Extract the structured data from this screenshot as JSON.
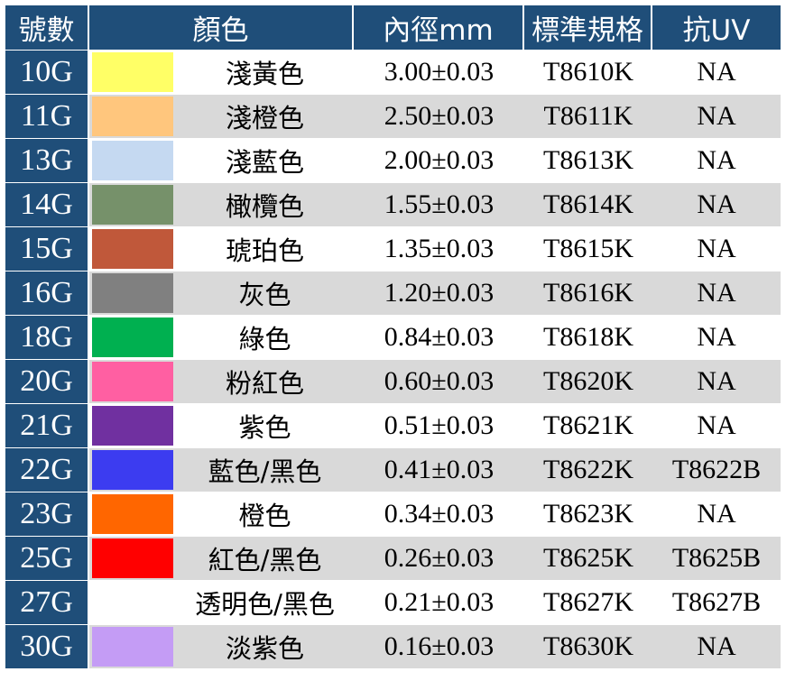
{
  "headers": {
    "number": "號數",
    "color": "顏色",
    "inner_diameter": "內徑mm",
    "standard_spec": "標準規格",
    "anti_uv": "抗UV"
  },
  "rows": [
    {
      "number": "10G",
      "swatch": "#ffff66",
      "color_name": "淺黃色",
      "diameter": "3.00±0.03",
      "spec": "T8610K",
      "uv": "NA"
    },
    {
      "number": "11G",
      "swatch": "#ffc67d",
      "color_name": "淺橙色",
      "diameter": "2.50±0.03",
      "spec": "T8611K",
      "uv": "NA"
    },
    {
      "number": "13G",
      "swatch": "#c5d9f1",
      "color_name": "淺藍色",
      "diameter": "2.00±0.03",
      "spec": "T8613K",
      "uv": "NA"
    },
    {
      "number": "14G",
      "swatch": "#76916a",
      "color_name": "橄欖色",
      "diameter": "1.55±0.03",
      "spec": "T8614K",
      "uv": "NA"
    },
    {
      "number": "15G",
      "swatch": "#c0583a",
      "color_name": "琥珀色",
      "diameter": "1.35±0.03",
      "spec": "T8615K",
      "uv": "NA"
    },
    {
      "number": "16G",
      "swatch": "#808080",
      "color_name": "灰色",
      "diameter": "1.20±0.03",
      "spec": "T8616K",
      "uv": "NA"
    },
    {
      "number": "18G",
      "swatch": "#00b050",
      "color_name": "綠色",
      "diameter": "0.84±0.03",
      "spec": "T8618K",
      "uv": "NA"
    },
    {
      "number": "20G",
      "swatch": "#ff5fa2",
      "color_name": "粉紅色",
      "diameter": "0.60±0.03",
      "spec": "T8620K",
      "uv": "NA"
    },
    {
      "number": "21G",
      "swatch": "#7030a0",
      "color_name": "紫色",
      "diameter": "0.51±0.03",
      "spec": "T8621K",
      "uv": "NA"
    },
    {
      "number": "22G",
      "swatch": "#3c3cf0",
      "color_name": "藍色/黑色",
      "diameter": "0.41±0.03",
      "spec": "T8622K",
      "uv": "T8622B"
    },
    {
      "number": "23G",
      "swatch": "#ff6600",
      "color_name": "橙色",
      "diameter": "0.34±0.03",
      "spec": "T8623K",
      "uv": "NA"
    },
    {
      "number": "25G",
      "swatch": "#ff0000",
      "color_name": "紅色/黑色",
      "diameter": "0.26±0.03",
      "spec": "T8625K",
      "uv": "T8625B"
    },
    {
      "number": "27G",
      "swatch": "#ffffff",
      "color_name": "透明色/黑色",
      "diameter": "0.21±0.03",
      "spec": "T8627K",
      "uv": "T8627B"
    },
    {
      "number": "30G",
      "swatch": "#c49cf5",
      "color_name": "淡紫色",
      "diameter": "0.16±0.03",
      "spec": "T8630K",
      "uv": "NA"
    }
  ]
}
